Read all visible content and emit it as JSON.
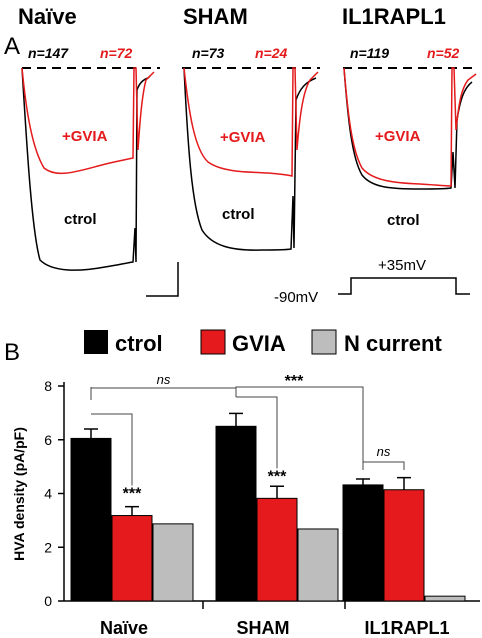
{
  "panel_a": {
    "panel_label": "A",
    "groups": [
      {
        "name": "Naïve",
        "n_ctrol": "n=147",
        "n_gvia": "n=72"
      },
      {
        "name": "SHAM",
        "n_ctrol": "n=73",
        "n_gvia": "n=24"
      },
      {
        "name": "IL1RAPL1",
        "n_ctrol": "n=119",
        "n_gvia": "n=52"
      }
    ],
    "trace_labels": {
      "gvia": "+GVIA",
      "ctrol": "ctrol"
    },
    "protocol": {
      "holding": "-90mV",
      "step": "+35mV"
    },
    "colors": {
      "ctrol": "#000000",
      "gvia": "#e41a1c"
    }
  },
  "panel_b": {
    "panel_label": "B",
    "legend": [
      {
        "label": "ctrol",
        "color": "#000000"
      },
      {
        "label": "GVIA",
        "color": "#e41a1c"
      },
      {
        "label": "N current",
        "color": "#bdbdbd"
      }
    ],
    "ylabel": "HVA density (pA/pF)",
    "annotations": {
      "ns": "ns",
      "stars": "***"
    }
  },
  "chart_data": {
    "type": "bar",
    "categories": [
      "Naïve",
      "SHAM",
      "IL1RAPL1"
    ],
    "series": [
      {
        "name": "ctrol",
        "values": [
          6.05,
          6.5,
          4.32
        ],
        "errors": [
          0.35,
          0.48,
          0.22
        ],
        "color": "#000000"
      },
      {
        "name": "GVIA",
        "values": [
          3.18,
          3.82,
          4.14
        ],
        "errors": [
          0.33,
          0.45,
          0.45
        ],
        "color": "#e41a1c"
      },
      {
        "name": "N current",
        "values": [
          2.87,
          2.68,
          0.18
        ],
        "color": "#bdbdbd"
      }
    ],
    "ylim": [
      0,
      8
    ],
    "yticks": [
      "0",
      "2",
      "4",
      "6",
      "8"
    ],
    "xlabel": "",
    "ylabel": "HVA density (pA/pF)",
    "grid": false,
    "legend_position": "top"
  }
}
